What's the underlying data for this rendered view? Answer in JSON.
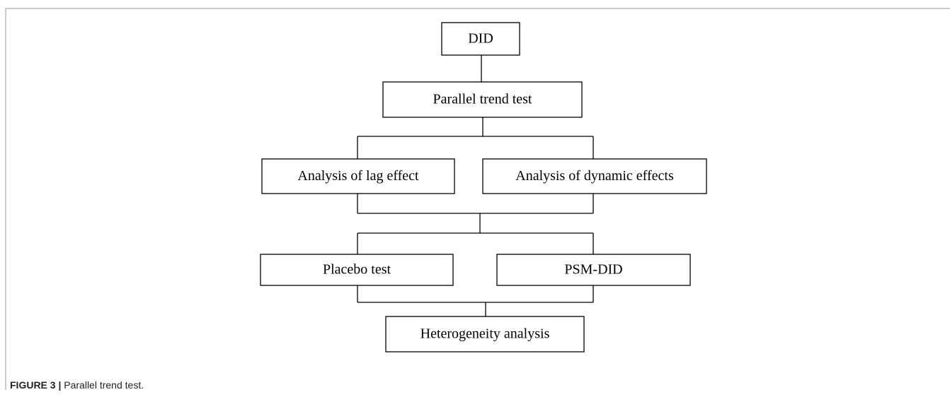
{
  "nodes": [
    {
      "label": "DID"
    },
    {
      "label": "Parallel trend test"
    },
    {
      "label": "Analysis of lag effect"
    },
    {
      "label": "Analysis of dynamic effects"
    },
    {
      "label": "Placebo test"
    },
    {
      "label": "PSM-DID"
    },
    {
      "label": "Heterogeneity analysis"
    }
  ],
  "caption": {
    "label": "FIGURE 3 |",
    "text": "Parallel trend test."
  }
}
